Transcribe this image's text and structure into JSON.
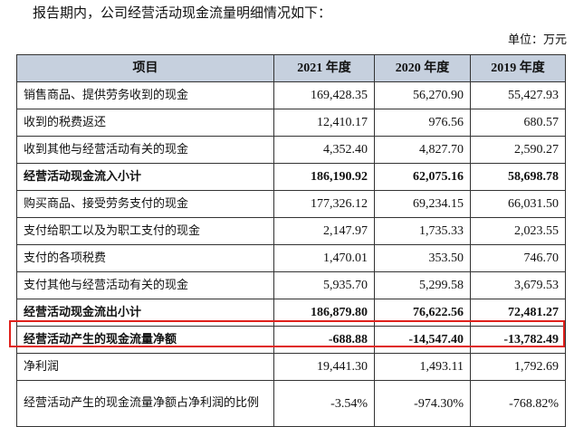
{
  "intro": "报告期内，公司经营活动现金流量明细情况如下：",
  "unit": "单位：万元",
  "table": {
    "header": [
      "项目",
      "2021 年度",
      "2020 年度",
      "2019 年度"
    ],
    "rows": [
      {
        "label": "销售商品、提供劳务收到的现金",
        "v": [
          "169,428.35",
          "56,270.90",
          "55,427.93"
        ]
      },
      {
        "label": "收到的税费返还",
        "v": [
          "12,410.17",
          "976.56",
          "680.57"
        ]
      },
      {
        "label": "收到其他与经营活动有关的现金",
        "v": [
          "4,352.40",
          "4,827.70",
          "2,590.27"
        ]
      },
      {
        "label": "经营活动现金流入小计",
        "v": [
          "186,190.92",
          "62,075.16",
          "58,698.78"
        ]
      },
      {
        "label": "购买商品、接受劳务支付的现金",
        "v": [
          "177,326.12",
          "69,234.15",
          "66,031.50"
        ]
      },
      {
        "label": "支付给职工以及为职工支付的现金",
        "v": [
          "2,147.97",
          "1,735.33",
          "2,023.55"
        ]
      },
      {
        "label": "支付的各项税费",
        "v": [
          "1,470.01",
          "353.50",
          "746.70"
        ]
      },
      {
        "label": "支付其他与经营活动有关的现金",
        "v": [
          "5,935.70",
          "5,299.58",
          "3,679.53"
        ]
      },
      {
        "label": "经营活动现金流出小计",
        "v": [
          "186,879.80",
          "76,622.56",
          "72,481.27"
        ]
      },
      {
        "label": "经营活动产生的现金流量净额",
        "v": [
          "-688.88",
          "-14,547.40",
          "-13,782.49"
        ]
      },
      {
        "label": "净利润",
        "v": [
          "19,441.30",
          "1,493.11",
          "1,792.69"
        ]
      },
      {
        "label": "经营活动产生的现金流量净额占净利润的比例",
        "v": [
          "-3.54%",
          "-974.30%",
          "-768.82%"
        ]
      }
    ]
  },
  "highlight_color": "#e0201b",
  "header_bg": "#c6d0de"
}
